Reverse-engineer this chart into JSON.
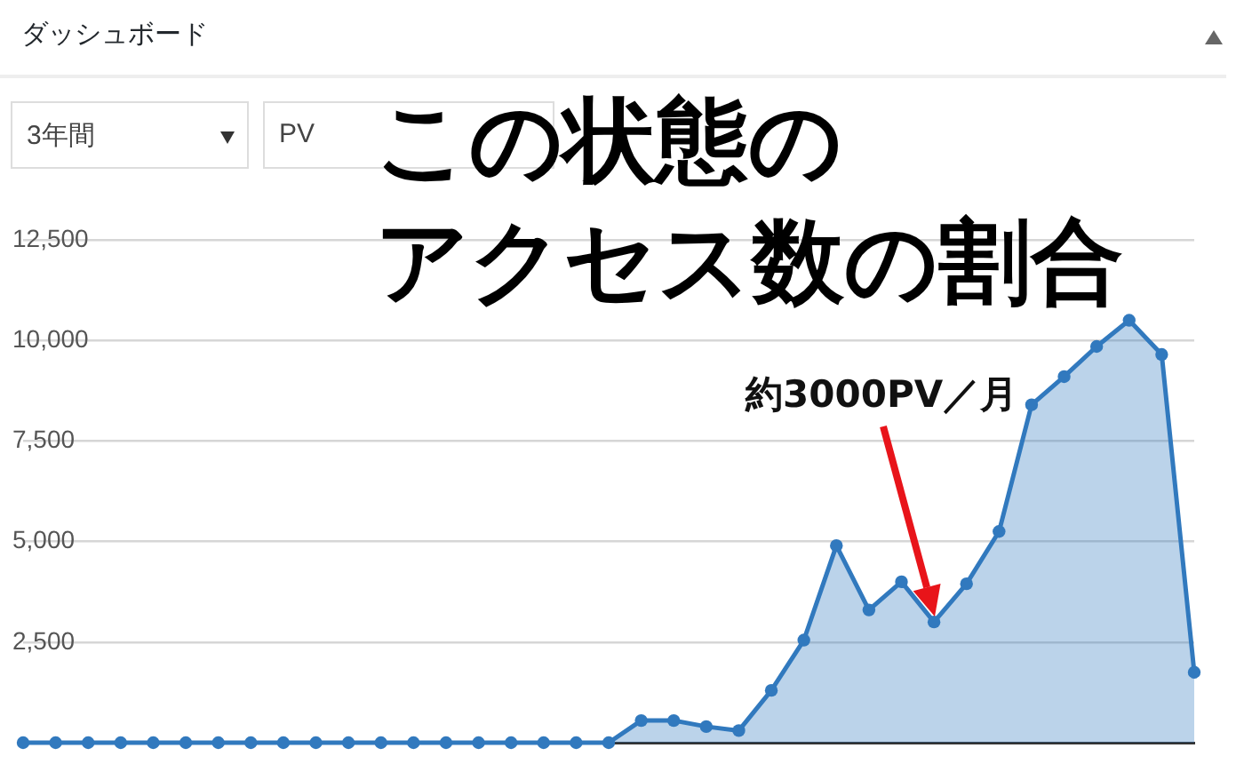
{
  "chart_data": {
    "type": "area",
    "title": "ダッシュボード",
    "subtitle": "この状態のアクセス数の割合",
    "annotations": [
      "3年間",
      "PV",
      "約3000PV／月"
    ],
    "categories": [
      null,
      null,
      null,
      null,
      null,
      null,
      null,
      null,
      null,
      null,
      null,
      null,
      null,
      null,
      null,
      null,
      null,
      null,
      null,
      null,
      null,
      null,
      null,
      null,
      null,
      null,
      null,
      null,
      null,
      null,
      null,
      null,
      null,
      null,
      null,
      null,
      null
    ],
    "values": [
      0,
      0,
      0,
      0,
      0,
      0,
      0,
      0,
      0,
      0,
      0,
      0,
      0,
      0,
      0,
      0,
      0,
      0,
      0,
      550,
      550,
      400,
      300,
      1300,
      2550,
      4900,
      3300,
      4000,
      3000,
      3950,
      5250,
      8400,
      9100,
      9850,
      10500,
      9650,
      1750
    ],
    "color": "#3179be",
    "ylim": [
      0,
      12500
    ],
    "yticks": [
      {
        "value": 2500,
        "label": "2,500"
      },
      {
        "value": 5000,
        "label": "5,000"
      },
      {
        "value": 7500,
        "label": "7,500"
      },
      {
        "value": 10000,
        "label": "10,000"
      },
      {
        "value": 12500,
        "label": "12,500"
      }
    ],
    "grid": "y",
    "legend": false,
    "tick_labels": "y",
    "marker": "circle"
  }
}
